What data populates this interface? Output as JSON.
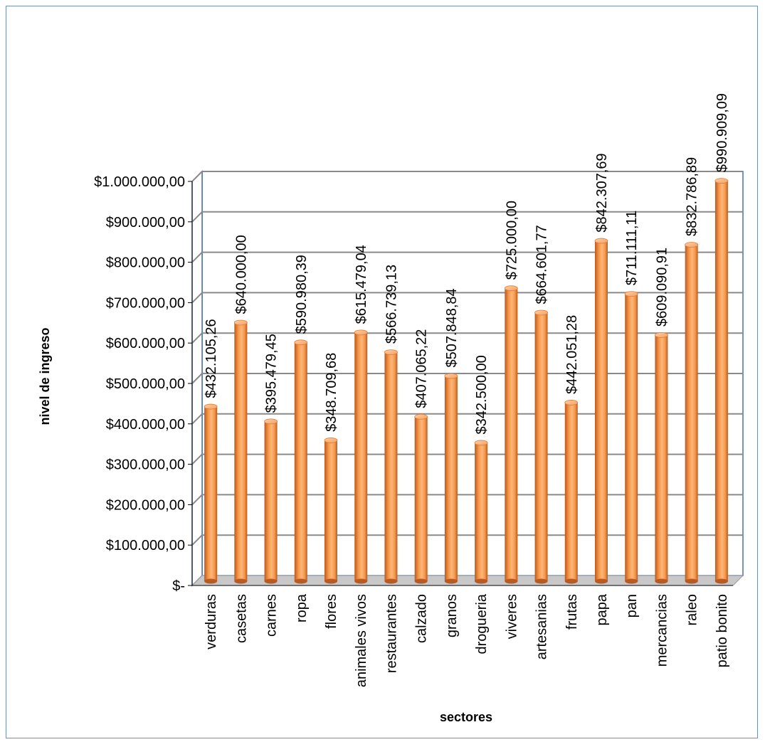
{
  "chart_data": {
    "type": "bar",
    "style": "3d-cylinder",
    "xlabel": "sectores",
    "ylabel": "nivel de ingreso",
    "ylim": [
      0,
      1000000
    ],
    "grid": true,
    "legend": "none",
    "y_ticks": [
      0,
      100000,
      200000,
      300000,
      400000,
      500000,
      600000,
      700000,
      800000,
      900000,
      1000000
    ],
    "y_tick_labels": [
      "$-",
      "$100.000,00",
      "$200.000,00",
      "$300.000,00",
      "$400.000,00",
      "$500.000,00",
      "$600.000,00",
      "$700.000,00",
      "$800.000,00",
      "$900.000,00",
      "$1.000.000,00"
    ],
    "categories": [
      "verduras",
      "casetas",
      "carnes",
      "ropa",
      "flores",
      "animales vivos",
      "restaurantes",
      "calzado",
      "granos",
      "drogueria",
      "viveres",
      "artesanias",
      "frutas",
      "papa",
      "pan",
      "mercancias",
      "raleo",
      "patio bonito"
    ],
    "values": [
      432105.26,
      640000.0,
      395479.45,
      590980.39,
      348709.68,
      615479.04,
      566739.13,
      407065.22,
      507848.84,
      342500.0,
      725000.0,
      664601.77,
      442051.28,
      842307.69,
      711111.11,
      609090.91,
      832786.89,
      990909.09
    ],
    "data_labels": [
      "$432.105,26",
      "$640.000,00",
      "$395.479,45",
      "$590.980,39",
      "$348.709,68",
      "$615.479,04",
      "$566.739,13",
      "$407.065,22",
      "$507.848,84",
      "$342.500,00",
      "$725.000,00",
      "$664.601,77",
      "$442.051,28",
      "$842.307,69",
      "$711.111,11",
      "$609.090,91",
      "$832.786,89",
      "$990.909,09"
    ],
    "colors": {
      "bar": "#f79646",
      "bar_dark": "#c0602a",
      "bar_light": "#fbc79a",
      "gridline": "#8a8a8a",
      "wall": "#ffffff",
      "floor": "#c8c8c8",
      "axis": "#4a6fa5",
      "frame": "#6f8fbf"
    }
  }
}
